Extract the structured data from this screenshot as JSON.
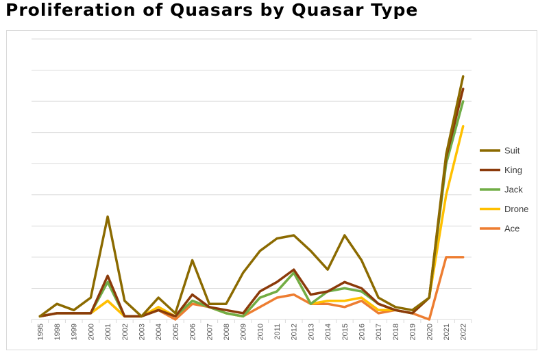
{
  "title": "Proliferation of Quasars by Quasar Type",
  "chart_data": {
    "type": "line",
    "title": "Proliferation of Quasars by Quasar Type",
    "xlabel": "",
    "ylabel": "",
    "ylim": [
      0,
      90
    ],
    "grid": true,
    "legend_position": "right",
    "x": [
      "1995",
      "1998",
      "1999",
      "2000",
      "2001",
      "2002",
      "2003",
      "2004",
      "2005",
      "2006",
      "2007",
      "2008",
      "2009",
      "2010",
      "2011",
      "2012",
      "2013",
      "2014",
      "2015",
      "2016",
      "2017",
      "2018",
      "2019",
      "2020",
      "2021",
      "2022"
    ],
    "series": [
      {
        "name": "Suit",
        "color": "#8B6A00",
        "values": [
          1,
          5,
          3,
          7,
          33,
          6,
          1,
          7,
          2,
          19,
          5,
          5,
          15,
          22,
          26,
          27,
          22,
          16,
          27,
          19,
          7,
          4,
          3,
          7,
          53,
          78
        ]
      },
      {
        "name": "King",
        "color": "#8B3A0A",
        "values": [
          1,
          2,
          2,
          2,
          14,
          1,
          1,
          3,
          1,
          8,
          4,
          3,
          2,
          9,
          12,
          16,
          8,
          9,
          12,
          10,
          5,
          3,
          2,
          7,
          52,
          74
        ]
      },
      {
        "name": "Jack",
        "color": "#70AD47",
        "values": [
          1,
          2,
          2,
          2,
          12,
          1,
          1,
          3,
          1,
          6,
          4,
          2,
          1,
          7,
          9,
          15,
          5,
          9,
          10,
          9,
          5,
          3,
          2,
          7,
          50,
          70
        ]
      },
      {
        "name": "Drone",
        "color": "#FFC000",
        "values": [
          1,
          2,
          2,
          2,
          6,
          1,
          1,
          4,
          1,
          6,
          4,
          2,
          1,
          7,
          9,
          15,
          5,
          6,
          6,
          7,
          3,
          3,
          2,
          7,
          40,
          62
        ]
      },
      {
        "name": "Ace",
        "color": "#ED7D31",
        "values": [
          1,
          2,
          2,
          2,
          6,
          1,
          1,
          3,
          0,
          5,
          4,
          2,
          1,
          4,
          7,
          8,
          5,
          5,
          4,
          6,
          2,
          3,
          2,
          0,
          20,
          20
        ]
      }
    ]
  }
}
